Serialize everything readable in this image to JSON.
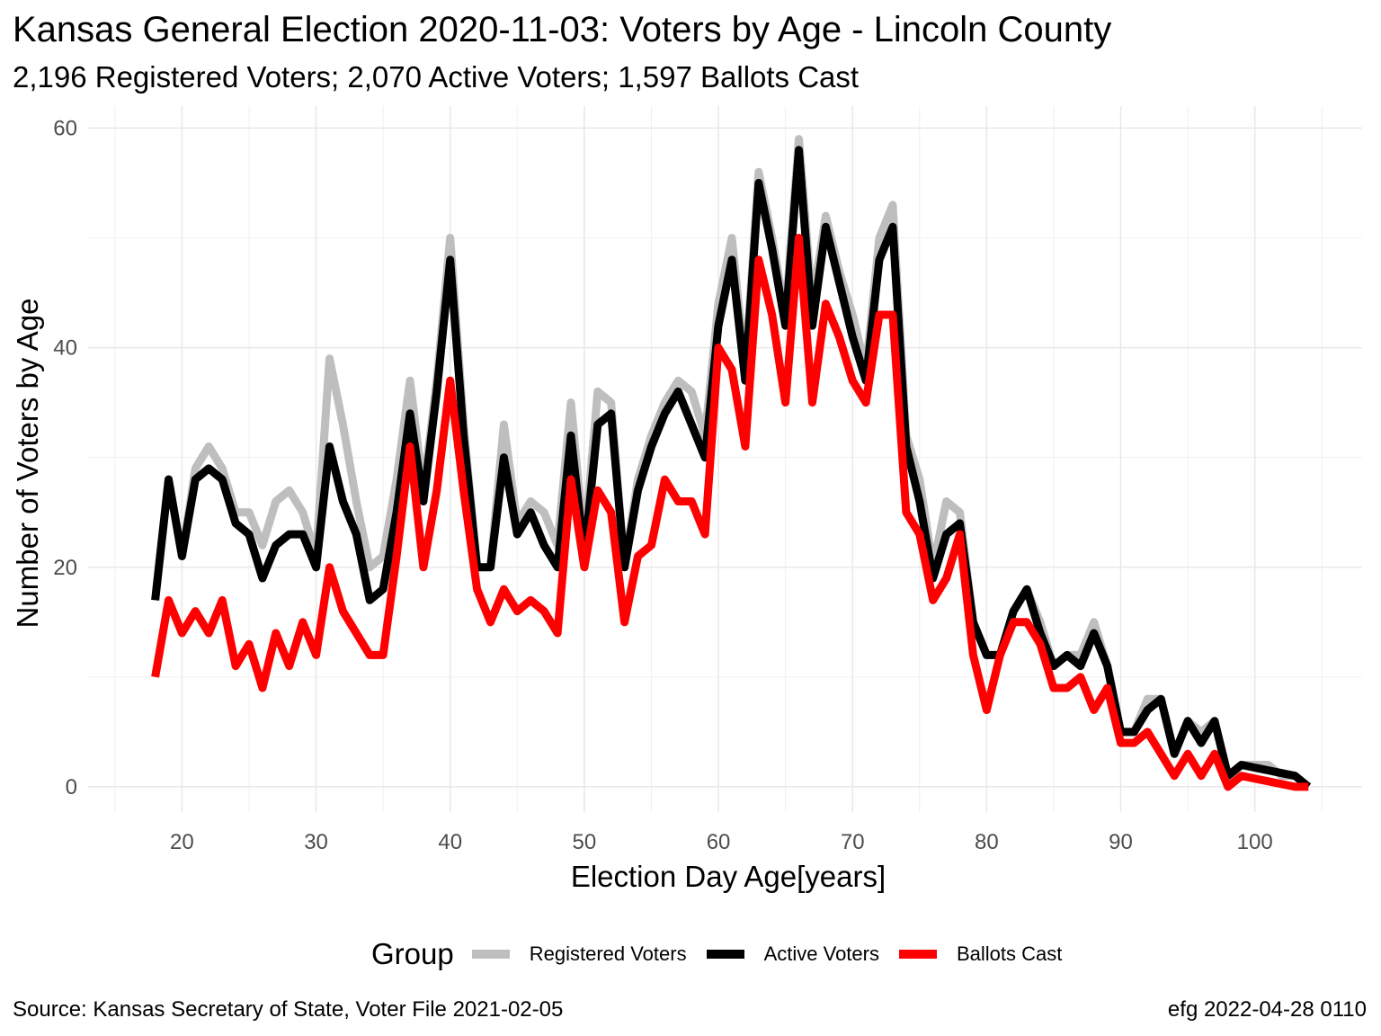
{
  "header": {
    "title": "Kansas General Election 2020-11-03:  Voters by Age - Lincoln County",
    "subtitle": "2,196 Registered Voters; 2,070 Active Voters; 1,597 Ballots Cast"
  },
  "caption": {
    "source": "Source:  Kansas Secretary of State, Voter File  2021-02-05",
    "credit": "efg 2022-04-28 0110"
  },
  "legend": {
    "title": "Group",
    "position": "bottom"
  },
  "chart_data": {
    "type": "line",
    "title": "Kansas General Election 2020-11-03:  Voters by Age - Lincoln County",
    "subtitle": "2,196 Registered Voters; 2,070 Active Voters; 1,597 Ballots Cast",
    "xlabel": "Election Day Age[years]",
    "ylabel": "Number of Voters by Age",
    "xlim": [
      13,
      108
    ],
    "ylim": [
      -2.3,
      62
    ],
    "xticks": [
      20,
      30,
      40,
      50,
      60,
      70,
      80,
      90,
      100
    ],
    "yticks": [
      0,
      20,
      40,
      60
    ],
    "grid": true,
    "legend_position": "bottom",
    "x": [
      18,
      19,
      20,
      21,
      22,
      23,
      24,
      25,
      26,
      27,
      28,
      29,
      30,
      31,
      32,
      33,
      34,
      35,
      36,
      37,
      38,
      39,
      40,
      41,
      42,
      43,
      44,
      45,
      46,
      47,
      48,
      49,
      50,
      51,
      52,
      53,
      54,
      55,
      56,
      57,
      58,
      59,
      60,
      61,
      62,
      63,
      64,
      65,
      66,
      67,
      68,
      69,
      70,
      71,
      72,
      73,
      74,
      75,
      76,
      77,
      78,
      79,
      80,
      81,
      82,
      83,
      84,
      85,
      86,
      87,
      88,
      89,
      90,
      91,
      92,
      93,
      94,
      95,
      96,
      97,
      98,
      99,
      100,
      101,
      102,
      103,
      104
    ],
    "series": [
      {
        "name": "Registered Voters",
        "color": "#bebebe",
        "values": [
          17,
          28,
          21,
          29,
          31,
          29,
          25,
          25,
          22,
          26,
          27,
          25,
          21,
          39,
          33,
          26,
          20,
          21,
          28,
          37,
          27,
          37,
          50,
          33,
          20,
          20,
          33,
          24,
          26,
          25,
          22,
          35,
          22,
          36,
          35,
          20,
          28,
          32,
          35,
          37,
          36,
          32,
          44,
          50,
          38,
          56,
          50,
          43,
          59,
          44,
          52,
          47,
          43,
          38,
          50,
          53,
          32,
          28,
          20,
          26,
          25,
          15,
          12,
          12,
          16,
          18,
          15,
          11,
          12,
          12,
          15,
          11,
          5,
          5,
          8,
          8,
          3,
          6,
          5,
          6,
          1,
          2,
          2,
          2,
          1,
          1,
          0
        ]
      },
      {
        "name": "Active Voters",
        "color": "#000000",
        "values": [
          17,
          28,
          21,
          28,
          29,
          28,
          24,
          23,
          19,
          22,
          23,
          23,
          20,
          31,
          26,
          23,
          17,
          18,
          25,
          34,
          26,
          36,
          48,
          32,
          20,
          20,
          30,
          23,
          25,
          22,
          20,
          32,
          21,
          33,
          34,
          20,
          27,
          31,
          34,
          36,
          33,
          30,
          42,
          48,
          37,
          55,
          49,
          42,
          58,
          42,
          51,
          46,
          41,
          37,
          48,
          51,
          31,
          26,
          19,
          23,
          24,
          15,
          12,
          12,
          16,
          18,
          14,
          11,
          12,
          11,
          14,
          11,
          5,
          5,
          7,
          8,
          3,
          6,
          4,
          6,
          1,
          2,
          1.75,
          1.5,
          1.25,
          1,
          0
        ]
      },
      {
        "name": "Ballots Cast",
        "color": "#ff0000",
        "values": [
          10,
          17,
          14,
          16,
          14,
          17,
          11,
          13,
          9,
          14,
          11,
          15,
          12,
          20,
          16,
          14,
          12,
          12,
          21,
          31,
          20,
          27,
          37,
          27,
          18,
          15,
          18,
          16,
          17,
          16,
          14,
          28,
          20,
          27,
          25,
          15,
          21,
          22,
          28,
          26,
          26,
          23,
          40,
          38,
          31,
          48,
          43,
          35,
          50,
          35,
          44,
          41,
          37,
          35,
          43,
          43,
          25,
          23,
          17,
          19,
          23,
          12,
          7,
          12,
          15,
          15,
          13,
          9,
          9,
          10,
          7,
          9,
          4,
          4,
          5,
          3,
          1,
          3,
          1,
          3,
          0,
          1,
          0.75,
          0.5,
          0.25,
          0,
          0
        ]
      }
    ]
  }
}
